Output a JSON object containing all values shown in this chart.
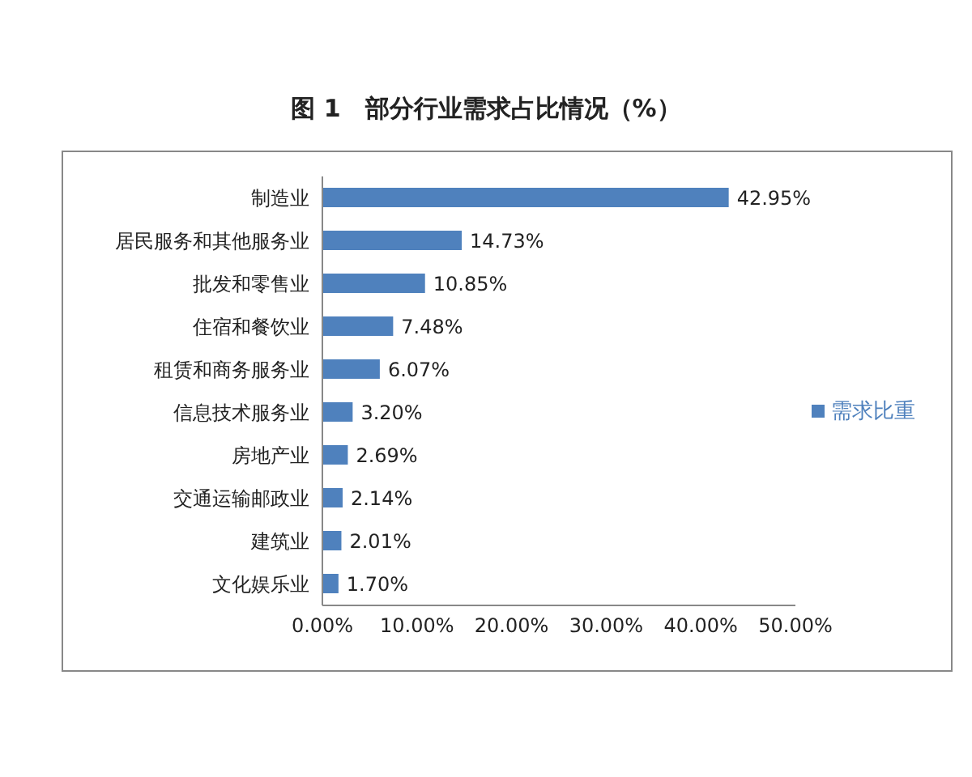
{
  "chart_data": {
    "type": "bar",
    "orientation": "horizontal",
    "title": "图 1　部分行业需求占比情况（%）",
    "categories": [
      "制造业",
      "居民服务和其他服务业",
      "批发和零售业",
      "住宿和餐饮业",
      "租赁和商务服务业",
      "信息技术服务业",
      "房地产业",
      "交通运输邮政业",
      "建筑业",
      "文化娱乐业"
    ],
    "series": [
      {
        "name": "需求比重",
        "color": "#4f81bd",
        "values": [
          42.95,
          14.73,
          10.85,
          7.48,
          6.07,
          3.2,
          2.69,
          2.14,
          2.01,
          1.7
        ],
        "value_labels": [
          "42.95%",
          "14.73%",
          "10.85%",
          "7.48%",
          "6.07%",
          "3.20%",
          "2.69%",
          "2.14%",
          "2.01%",
          "1.70%"
        ]
      }
    ],
    "xlim": [
      0,
      50
    ],
    "xticks": [
      {
        "value": 0,
        "label": "0.00%"
      },
      {
        "value": 10,
        "label": "10.00%"
      },
      {
        "value": 20,
        "label": "20.00%"
      },
      {
        "value": 30,
        "label": "30.00%"
      },
      {
        "value": 40,
        "label": "40.00%"
      },
      {
        "value": 50,
        "label": "50.00%"
      }
    ],
    "grid": false,
    "legend": "right"
  }
}
